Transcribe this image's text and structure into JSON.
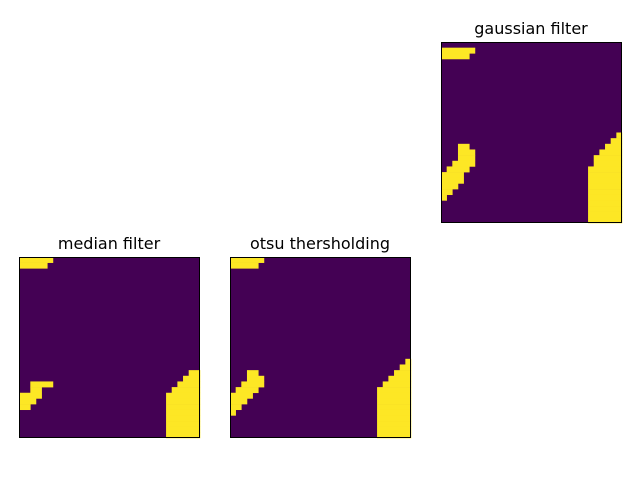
{
  "colors": {
    "background": "#440154",
    "foreground": "#fde725",
    "frame": "#000000"
  },
  "chart_data": [
    {
      "type": "heatmap",
      "title": "gaussian filter",
      "grid": false,
      "axes_ticks": false,
      "shape": [
        32,
        32
      ],
      "foreground_mask_rects": [
        {
          "row": 1,
          "col_from": 0,
          "col_to": 5
        },
        {
          "row": 2,
          "col_from": 0,
          "col_to": 4
        },
        {
          "row": 18,
          "col_from": 3,
          "col_to": 4
        },
        {
          "row": 19,
          "col_from": 3,
          "col_to": 5
        },
        {
          "row": 20,
          "col_from": 3,
          "col_to": 5
        },
        {
          "row": 21,
          "col_from": 2,
          "col_to": 5
        },
        {
          "row": 22,
          "col_from": 1,
          "col_to": 4
        },
        {
          "row": 23,
          "col_from": 0,
          "col_to": 3
        },
        {
          "row": 24,
          "col_from": 0,
          "col_to": 3
        },
        {
          "row": 25,
          "col_from": 0,
          "col_to": 2
        },
        {
          "row": 26,
          "col_from": 0,
          "col_to": 1
        },
        {
          "row": 27,
          "col_from": 0,
          "col_to": 0
        },
        {
          "row": 16,
          "col_from": 31,
          "col_to": 31
        },
        {
          "row": 17,
          "col_from": 30,
          "col_to": 31
        },
        {
          "row": 18,
          "col_from": 29,
          "col_to": 31
        },
        {
          "row": 19,
          "col_from": 28,
          "col_to": 31
        },
        {
          "row": 20,
          "col_from": 27,
          "col_to": 31
        },
        {
          "row": 21,
          "col_from": 27,
          "col_to": 31
        },
        {
          "row": 22,
          "col_from": 26,
          "col_to": 31
        },
        {
          "row": 23,
          "col_from": 26,
          "col_to": 31
        },
        {
          "row": 24,
          "col_from": 26,
          "col_to": 31
        },
        {
          "row": 25,
          "col_from": 26,
          "col_to": 31
        },
        {
          "row": 26,
          "col_from": 26,
          "col_to": 31
        },
        {
          "row": 27,
          "col_from": 26,
          "col_to": 31
        },
        {
          "row": 28,
          "col_from": 26,
          "col_to": 31
        },
        {
          "row": 29,
          "col_from": 26,
          "col_to": 31
        },
        {
          "row": 30,
          "col_from": 26,
          "col_to": 31
        },
        {
          "row": 31,
          "col_from": 26,
          "col_to": 31
        }
      ]
    },
    {
      "type": "heatmap",
      "title": "median filter",
      "grid": false,
      "axes_ticks": false,
      "shape": [
        32,
        32
      ],
      "foreground_mask_rects": [
        {
          "row": 0,
          "col_from": 0,
          "col_to": 5
        },
        {
          "row": 1,
          "col_from": 0,
          "col_to": 4
        },
        {
          "row": 22,
          "col_from": 2,
          "col_to": 5
        },
        {
          "row": 23,
          "col_from": 2,
          "col_to": 3
        },
        {
          "row": 24,
          "col_from": 0,
          "col_to": 3
        },
        {
          "row": 25,
          "col_from": 0,
          "col_to": 2
        },
        {
          "row": 26,
          "col_from": 0,
          "col_to": 1
        },
        {
          "row": 20,
          "col_from": 30,
          "col_to": 31
        },
        {
          "row": 21,
          "col_from": 29,
          "col_to": 31
        },
        {
          "row": 22,
          "col_from": 28,
          "col_to": 31
        },
        {
          "row": 23,
          "col_from": 27,
          "col_to": 31
        },
        {
          "row": 24,
          "col_from": 26,
          "col_to": 31
        },
        {
          "row": 25,
          "col_from": 26,
          "col_to": 31
        },
        {
          "row": 26,
          "col_from": 26,
          "col_to": 31
        },
        {
          "row": 27,
          "col_from": 26,
          "col_to": 31
        },
        {
          "row": 28,
          "col_from": 26,
          "col_to": 31
        },
        {
          "row": 29,
          "col_from": 26,
          "col_to": 31
        },
        {
          "row": 30,
          "col_from": 26,
          "col_to": 31
        },
        {
          "row": 31,
          "col_from": 26,
          "col_to": 31
        }
      ]
    },
    {
      "type": "heatmap",
      "title": "otsu thersholding",
      "grid": false,
      "axes_ticks": false,
      "shape": [
        32,
        32
      ],
      "foreground_mask_rects": [
        {
          "row": 0,
          "col_from": 0,
          "col_to": 5
        },
        {
          "row": 1,
          "col_from": 0,
          "col_to": 4
        },
        {
          "row": 20,
          "col_from": 3,
          "col_to": 4
        },
        {
          "row": 21,
          "col_from": 3,
          "col_to": 5
        },
        {
          "row": 22,
          "col_from": 2,
          "col_to": 5
        },
        {
          "row": 23,
          "col_from": 1,
          "col_to": 4
        },
        {
          "row": 24,
          "col_from": 0,
          "col_to": 3
        },
        {
          "row": 25,
          "col_from": 0,
          "col_to": 2
        },
        {
          "row": 26,
          "col_from": 0,
          "col_to": 1
        },
        {
          "row": 27,
          "col_from": 0,
          "col_to": 0
        },
        {
          "row": 18,
          "col_from": 31,
          "col_to": 31
        },
        {
          "row": 19,
          "col_from": 30,
          "col_to": 31
        },
        {
          "row": 20,
          "col_from": 29,
          "col_to": 31
        },
        {
          "row": 21,
          "col_from": 28,
          "col_to": 31
        },
        {
          "row": 22,
          "col_from": 27,
          "col_to": 31
        },
        {
          "row": 23,
          "col_from": 26,
          "col_to": 31
        },
        {
          "row": 24,
          "col_from": 26,
          "col_to": 31
        },
        {
          "row": 25,
          "col_from": 26,
          "col_to": 31
        },
        {
          "row": 26,
          "col_from": 26,
          "col_to": 31
        },
        {
          "row": 27,
          "col_from": 26,
          "col_to": 31
        },
        {
          "row": 28,
          "col_from": 26,
          "col_to": 31
        },
        {
          "row": 29,
          "col_from": 26,
          "col_to": 31
        },
        {
          "row": 30,
          "col_from": 26,
          "col_to": 31
        },
        {
          "row": 31,
          "col_from": 26,
          "col_to": 31
        }
      ]
    }
  ]
}
